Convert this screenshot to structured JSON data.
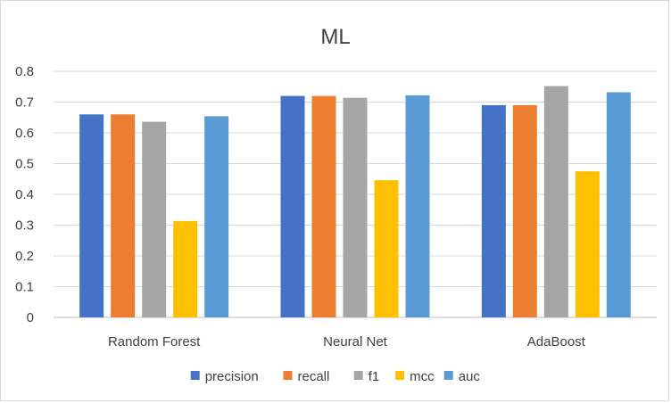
{
  "chart_data": {
    "type": "bar",
    "title": "ML",
    "categories": [
      "Random Forest",
      "Neural Net",
      "AdaBoost"
    ],
    "ylim": [
      0,
      0.8
    ],
    "yticks": [
      "0",
      "0.1",
      "0.2",
      "0.3",
      "0.4",
      "0.5",
      "0.6",
      "0.7",
      "0.8"
    ],
    "grid": true,
    "legend_position": "bottom",
    "series": [
      {
        "name": "precision",
        "color": "#4472C4",
        "values": [
          0.66,
          0.72,
          0.69
        ]
      },
      {
        "name": "recall",
        "color": "#ED7D31",
        "values": [
          0.66,
          0.72,
          0.69
        ]
      },
      {
        "name": "f1",
        "color": "#A5A5A5",
        "values": [
          0.636,
          0.714,
          0.752
        ]
      },
      {
        "name": "mcc",
        "color": "#FFC000",
        "values": [
          0.313,
          0.446,
          0.475
        ]
      },
      {
        "name": "auc",
        "color": "#5B9BD5",
        "values": [
          0.654,
          0.722,
          0.732
        ]
      }
    ]
  }
}
